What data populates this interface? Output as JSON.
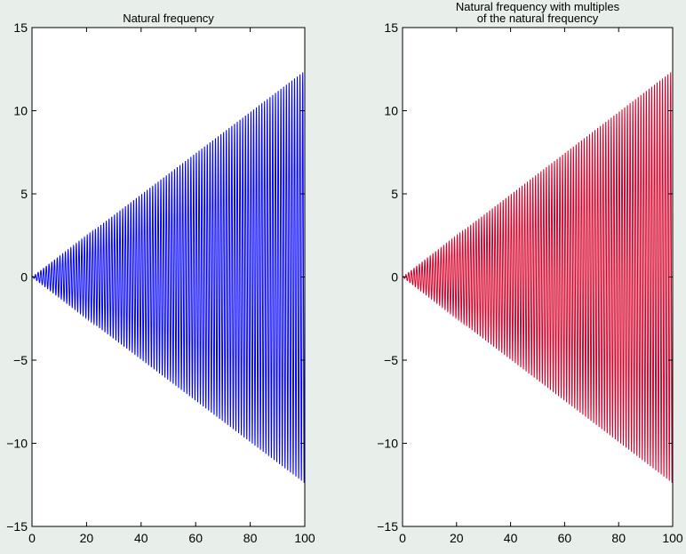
{
  "background_color": "#e8eeea",
  "chart_data": [
    {
      "type": "line",
      "title": "Natural frequency",
      "xlabel": "",
      "ylabel": "",
      "xlim": [
        0,
        100
      ],
      "ylim": [
        -15,
        15
      ],
      "x_ticks": [
        0,
        20,
        40,
        60,
        80,
        100
      ],
      "y_ticks": [
        15,
        10,
        5,
        0,
        -5,
        -10,
        -15
      ],
      "x_tick_labels": [
        "0",
        "20",
        "40",
        "60",
        "80",
        "100"
      ],
      "y_tick_labels": [
        "15",
        "10",
        "5",
        "0",
        "−5",
        "−10",
        "−15"
      ],
      "grid": false,
      "series": [
        {
          "color": "#0000ff",
          "x_range": [
            0,
            100
          ],
          "amplitude_envelope": "linear",
          "amplitude_start": 0,
          "amplitude_end": 12.4,
          "cycles": 100
        }
      ]
    },
    {
      "type": "line",
      "title": "Natural frequency with multiples\nof the natural frequency",
      "xlabel": "",
      "ylabel": "",
      "xlim": [
        0,
        100
      ],
      "ylim": [
        -15,
        15
      ],
      "x_ticks": [
        0,
        20,
        40,
        60,
        80,
        100
      ],
      "y_ticks": [
        15,
        10,
        5,
        0,
        -5,
        -10,
        -15
      ],
      "x_tick_labels": [
        "0",
        "20",
        "40",
        "60",
        "80",
        "100"
      ],
      "y_tick_labels": [
        "15",
        "10",
        "5",
        "0",
        "−5",
        "−10",
        "−15"
      ],
      "grid": false,
      "series": [
        {
          "color": "#d4002a",
          "x_range": [
            0,
            100
          ],
          "amplitude_envelope": "linear",
          "amplitude_start": 0,
          "amplitude_end": 12.4,
          "cycles": 100
        }
      ]
    }
  ]
}
